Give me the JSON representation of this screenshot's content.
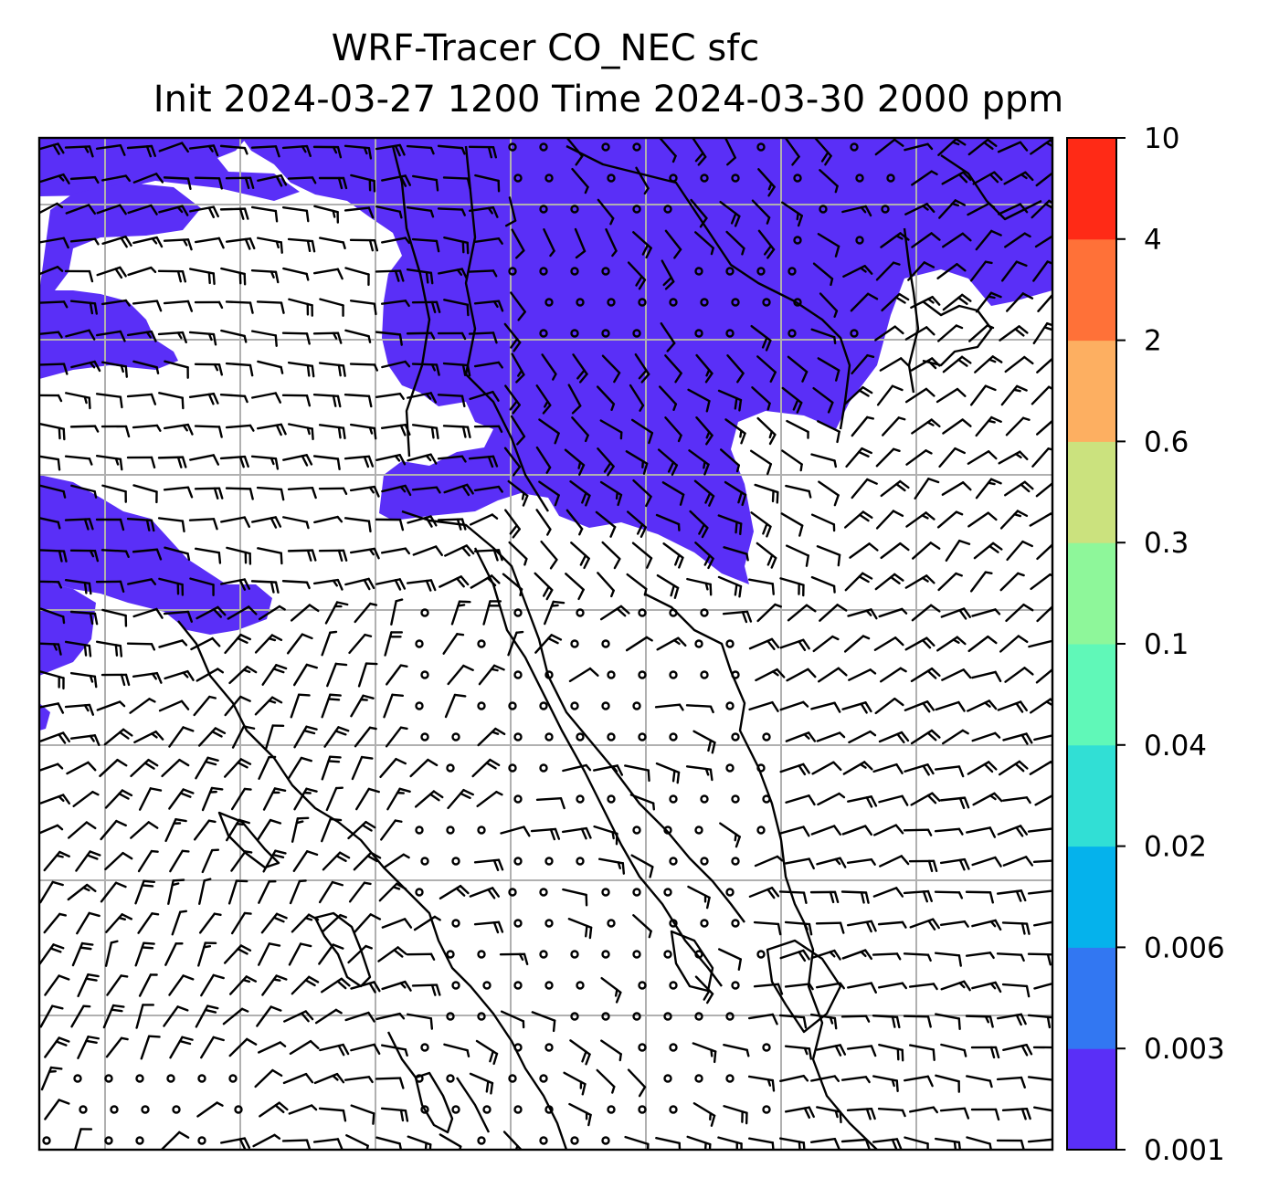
{
  "title": {
    "line1": "WRF-Tracer CO_NEC sfc",
    "line2": "Init 2024-03-27 1200 Time 2024-03-30 2000 ppm"
  },
  "map": {
    "fill_color": "#5a2ff7",
    "gridline_color": "#b0b0b0",
    "coast_color": "#000000",
    "barb_color": "#000000",
    "grid_lines_visible": true
  },
  "colorbar": {
    "levels": [
      "0.001",
      "0.003",
      "0.006",
      "0.02",
      "0.04",
      "0.1",
      "0.3",
      "0.6",
      "2",
      "4",
      "10"
    ],
    "colors": [
      "#5a2ff7",
      "#3277f2",
      "#05b2ec",
      "#31dfd5",
      "#60f8b8",
      "#8ef79a",
      "#cbe27e",
      "#fdaf61",
      "#ff7138",
      "#ff2a16"
    ]
  }
}
